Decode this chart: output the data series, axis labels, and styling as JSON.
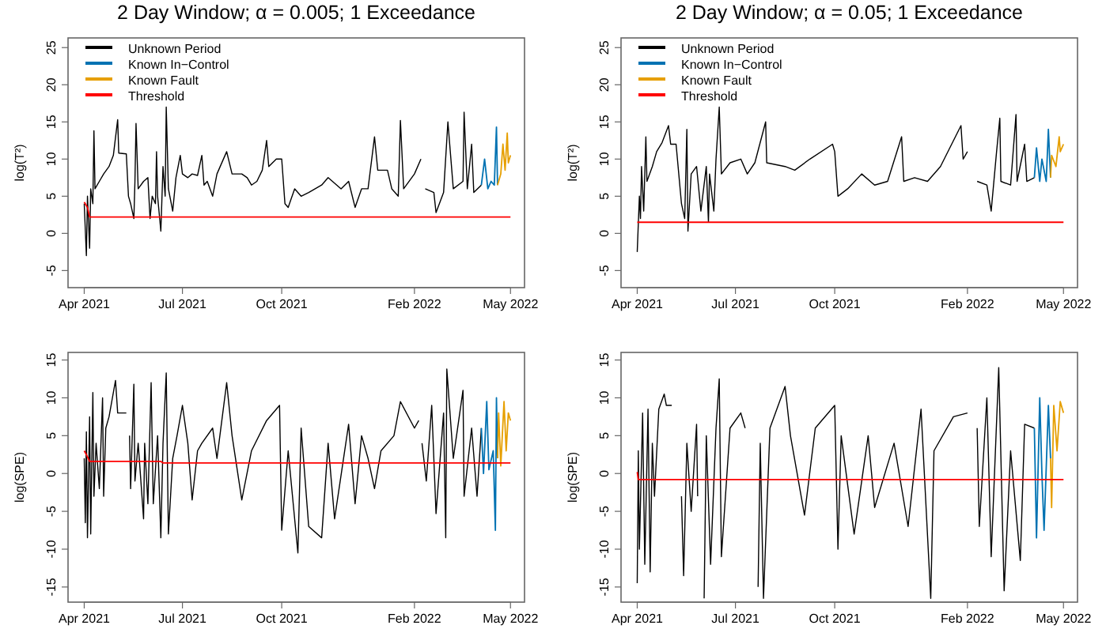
{
  "chart_data": [
    {
      "type": "line",
      "title": "2 Day Window; α = 0.005; 1 Exceedance",
      "ylabel": "log(T²)",
      "xlim": [
        "2021-03-17",
        "2022-05-14"
      ],
      "ylim": [
        -7.3,
        26.3
      ],
      "xticks": [
        {
          "value": "2021-04-01",
          "label": "Apr 2021"
        },
        {
          "value": "2021-07-01",
          "label": "Jul 2021"
        },
        {
          "value": "2021-10-01",
          "label": "Oct 2021"
        },
        {
          "value": "2022-02-01",
          "label": "Feb 2022"
        },
        {
          "value": "2022-05-01",
          "label": "May 2022"
        }
      ],
      "yticks": [
        -5,
        0,
        5,
        10,
        15,
        20,
        25
      ],
      "legend": "top left",
      "series": [
        {
          "name": "Unknown Period",
          "color": "#000000",
          "x": [
            "2021-04-01",
            "2021-04-03",
            "2021-04-04",
            "2021-04-06",
            "2021-04-07",
            "2021-04-09",
            "2021-04-10",
            "2021-04-11",
            "2021-04-15",
            "2021-04-19",
            "2021-04-24",
            "2021-04-28",
            "2021-05-02",
            "2021-05-03",
            "2021-05-10",
            "2021-05-12",
            "2021-05-14",
            "2021-05-17",
            "2021-05-18",
            "2021-05-19",
            "2021-05-21",
            "2021-05-26",
            "2021-05-30",
            "2021-06-01",
            "2021-06-03",
            "2021-06-06",
            "2021-06-07",
            "2021-06-08",
            "2021-06-11",
            "2021-06-13",
            "2021-06-15",
            "2021-06-16",
            "2021-06-18",
            "2021-06-22",
            "2021-06-25",
            "2021-06-29",
            "2021-07-01",
            "2021-07-06",
            "2021-07-10",
            "2021-07-15",
            "2021-07-19",
            "2021-07-21",
            "2021-07-24",
            "2021-07-29",
            "2021-08-02",
            "2021-08-11",
            "2021-08-16",
            "2021-08-25",
            "2021-08-30",
            "2021-09-03",
            "2021-09-08",
            "2021-09-13",
            "2021-09-17",
            "2021-09-19",
            "2021-09-26",
            "2021-10-01",
            "2021-10-04",
            "2021-10-07",
            "2021-10-13",
            "2021-10-19",
            "2021-10-26",
            "2021-11-07",
            "2021-11-13",
            "2021-11-25",
            "2021-12-02",
            "2021-12-08",
            "2021-12-14",
            "2021-12-20",
            "2021-12-26",
            "2021-12-29",
            "2022-01-07",
            "2022-01-11",
            "2022-01-17",
            "2022-01-19",
            "2022-01-22",
            "2022-02-01",
            "2022-02-07",
            "2022-02-08",
            "2022-02-11",
            "2022-02-19",
            "2022-02-21",
            "2022-02-28",
            "2022-03-04",
            "2022-03-09",
            "2022-03-18",
            "2022-03-19",
            "2022-03-22",
            "2022-03-26",
            "2022-03-28",
            "2022-04-04"
          ],
          "values": [
            4,
            -3,
            5,
            -2,
            6,
            4,
            13.8,
            6,
            7,
            8,
            9,
            10.5,
            15.3,
            10.8,
            10.7,
            5,
            4,
            2,
            7,
            14.8,
            6,
            7,
            7.5,
            2,
            5,
            4,
            11,
            5,
            0.3,
            9,
            5,
            17,
            6,
            3,
            7.5,
            10.5,
            8,
            7.5,
            8,
            7.8,
            10.5,
            6.5,
            7,
            5,
            8,
            11,
            8,
            8,
            7.5,
            6.5,
            7,
            8.5,
            12.5,
            9,
            10,
            10,
            4,
            3.5,
            6,
            5,
            5.5,
            6.5,
            7.5,
            6,
            7,
            3.5,
            6,
            6,
            13,
            8.5,
            8.5,
            6,
            5,
            15.2,
            6,
            8,
            10,
            null,
            6,
            5.5,
            2.8,
            5.5,
            15,
            6,
            7,
            16.3,
            6,
            12,
            5.5,
            6.5
          ]
        },
        {
          "name": "Known In−Control",
          "color": "#0072b2",
          "x": [
            "2022-04-04",
            "2022-04-07",
            "2022-04-10",
            "2022-04-13",
            "2022-04-16",
            "2022-04-18",
            "2022-04-19"
          ],
          "values": [
            6.5,
            10,
            6,
            7,
            6.5,
            14.3,
            6.5
          ]
        },
        {
          "name": "Known Fault",
          "color": "#e69f00",
          "x": [
            "2022-04-19",
            "2022-04-22",
            "2022-04-24",
            "2022-04-26",
            "2022-04-28",
            "2022-04-29",
            "2022-05-01"
          ],
          "values": [
            6.5,
            8,
            12,
            8.5,
            13.5,
            9.5,
            10.5
          ]
        },
        {
          "name": "Threshold",
          "color": "#ff0000",
          "x": [
            "2021-04-01",
            "2021-04-04",
            "2021-04-06",
            "2022-05-01"
          ],
          "values": [
            4.2,
            3.5,
            2.2,
            2.2
          ]
        }
      ]
    },
    {
      "type": "line",
      "title": "2 Day Window; α = 0.05; 1 Exceedance",
      "ylabel": "log(T²)",
      "xlim": [
        "2021-03-17",
        "2022-05-14"
      ],
      "ylim": [
        -7.3,
        26.3
      ],
      "xticks": [
        {
          "value": "2021-04-01",
          "label": "Apr 2021"
        },
        {
          "value": "2021-07-01",
          "label": "Jul 2021"
        },
        {
          "value": "2021-10-01",
          "label": "Oct 2021"
        },
        {
          "value": "2022-02-01",
          "label": "Feb 2022"
        },
        {
          "value": "2022-05-01",
          "label": "May 2022"
        }
      ],
      "yticks": [
        -5,
        0,
        5,
        10,
        15,
        20,
        25
      ],
      "legend": "top left",
      "series": [
        {
          "name": "Unknown Period",
          "color": "#000000",
          "x": [
            "2021-04-01",
            "2021-04-03",
            "2021-04-04",
            "2021-04-05",
            "2021-04-07",
            "2021-04-09",
            "2021-04-10",
            "2021-04-15",
            "2021-04-19",
            "2021-04-24",
            "2021-04-30",
            "2021-05-02",
            "2021-05-07",
            "2021-05-12",
            "2021-05-15",
            "2021-05-17",
            "2021-05-18",
            "2021-05-21",
            "2021-05-26",
            "2021-05-30",
            "2021-06-04",
            "2021-06-06",
            "2021-06-07",
            "2021-06-11",
            "2021-06-13",
            "2021-06-16",
            "2021-06-18",
            "2021-06-26",
            "2021-07-06",
            "2021-07-12",
            "2021-07-19",
            "2021-07-29",
            "2021-07-30",
            "2021-08-16",
            "2021-08-25",
            "2021-09-08",
            "2021-09-29",
            "2021-10-01",
            "2021-10-04",
            "2021-10-13",
            "2021-10-26",
            "2021-11-07",
            "2021-11-19",
            "2021-12-02",
            "2021-12-04",
            "2021-12-14",
            "2021-12-26",
            "2022-01-07",
            "2022-01-26",
            "2022-01-28",
            "2022-02-01",
            "2022-02-06",
            "2022-02-10",
            "2022-02-19",
            "2022-02-23",
            "2022-02-28",
            "2022-03-03",
            "2022-03-04",
            "2022-03-13",
            "2022-03-18",
            "2022-03-19",
            "2022-03-26",
            "2022-03-28",
            "2022-04-04"
          ],
          "values": [
            -2.5,
            5,
            2,
            9,
            3,
            13,
            7,
            9,
            11,
            12.2,
            14.5,
            12,
            12,
            4,
            2,
            14,
            0.3,
            8,
            9,
            3,
            9,
            1.5,
            8,
            3,
            10,
            17,
            8,
            9.5,
            10,
            8,
            9.5,
            15,
            9.5,
            9,
            8.5,
            10,
            12,
            11,
            5,
            6,
            8,
            6.5,
            7,
            13,
            7,
            7.5,
            7,
            9,
            14.5,
            10,
            11,
            null,
            7,
            6.5,
            3,
            11,
            15.5,
            7,
            6.5,
            16,
            7,
            12,
            7,
            7.5
          ]
        },
        {
          "name": "Known In−Control",
          "color": "#0072b2",
          "x": [
            "2022-04-04",
            "2022-04-06",
            "2022-04-09",
            "2022-04-11",
            "2022-04-15",
            "2022-04-17",
            "2022-04-19"
          ],
          "values": [
            7.5,
            11.5,
            7,
            10,
            7,
            14,
            7.5
          ]
        },
        {
          "name": "Known Fault",
          "color": "#e69f00",
          "x": [
            "2022-04-19",
            "2022-04-20",
            "2022-04-24",
            "2022-04-27",
            "2022-04-28",
            "2022-05-01"
          ],
          "values": [
            7.5,
            10.5,
            9,
            13,
            11,
            12
          ]
        },
        {
          "name": "Threshold",
          "color": "#ff0000",
          "x": [
            "2021-04-01",
            "2022-05-01"
          ],
          "values": [
            1.5,
            1.5
          ]
        }
      ]
    },
    {
      "type": "line",
      "ylabel": "log(SPE)",
      "xlim": [
        "2021-03-17",
        "2022-05-14"
      ],
      "ylim": [
        -17,
        16
      ],
      "xticks": [
        {
          "value": "2021-04-01",
          "label": "Apr 2021"
        },
        {
          "value": "2021-07-01",
          "label": "Jul 2021"
        },
        {
          "value": "2021-10-01",
          "label": "Oct 2021"
        },
        {
          "value": "2022-02-01",
          "label": "Feb 2022"
        },
        {
          "value": "2022-05-01",
          "label": "May 2022"
        }
      ],
      "yticks": [
        -15,
        -10,
        -5,
        0,
        5,
        10,
        15
      ],
      "series": [
        {
          "color": "#000000",
          "x": [
            "2021-04-01",
            "2021-04-02",
            "2021-04-03",
            "2021-04-04",
            "2021-04-06",
            "2021-04-07",
            "2021-04-09",
            "2021-04-10",
            "2021-04-12",
            "2021-04-15",
            "2021-04-18",
            "2021-04-19",
            "2021-04-21",
            "2021-04-24",
            "2021-04-30",
            "2021-05-02",
            "2021-05-10",
            "2021-05-12",
            "2021-05-13",
            "2021-05-14",
            "2021-05-17",
            "2021-05-18",
            "2021-05-21",
            "2021-05-26",
            "2021-05-27",
            "2021-05-30",
            "2021-06-02",
            "2021-06-04",
            "2021-06-08",
            "2021-06-11",
            "2021-06-13",
            "2021-06-16",
            "2021-06-18",
            "2021-06-22",
            "2021-06-26",
            "2021-07-01",
            "2021-07-06",
            "2021-07-10",
            "2021-07-15",
            "2021-07-19",
            "2021-07-29",
            "2021-08-02",
            "2021-08-11",
            "2021-08-16",
            "2021-08-25",
            "2021-09-03",
            "2021-09-17",
            "2021-09-29",
            "2021-10-01",
            "2021-10-07",
            "2021-10-16",
            "2021-10-19",
            "2021-10-26",
            "2021-11-07",
            "2021-11-13",
            "2021-11-19",
            "2021-12-02",
            "2021-12-08",
            "2021-12-14",
            "2021-12-20",
            "2021-12-26",
            "2022-01-01",
            "2022-01-13",
            "2022-01-19",
            "2022-02-01",
            "2022-02-05",
            "2022-02-07",
            "2022-02-08",
            "2022-02-12",
            "2022-02-17",
            "2022-02-21",
            "2022-02-28",
            "2022-03-02",
            "2022-03-03",
            "2022-03-09",
            "2022-03-18",
            "2022-03-19",
            "2022-03-26",
            "2022-03-31",
            "2022-04-04"
          ],
          "values": [
            2,
            -6.5,
            5.5,
            -8.5,
            7.5,
            -8,
            10.7,
            -3,
            4,
            -2,
            10,
            -3,
            6,
            7.5,
            12.3,
            8,
            8,
            null,
            5,
            -2,
            11.8,
            -1,
            4,
            -6,
            4,
            -4,
            12,
            -4,
            5,
            -8.5,
            4,
            13.3,
            -8,
            2,
            5,
            9,
            4,
            -3.5,
            3,
            4,
            6,
            2,
            12,
            5,
            -3.5,
            3,
            7,
            9,
            -7.5,
            3,
            -10.5,
            6,
            -7,
            -8.5,
            4,
            -6,
            6.5,
            -4,
            5,
            2,
            -2,
            3,
            5,
            9.5,
            6,
            7,
            null,
            4,
            -1,
            9,
            -5.3,
            8,
            -8.5,
            13.8,
            2,
            11,
            -3,
            6,
            -3,
            6
          ]
        },
        {
          "color": "#0072b2",
          "x": [
            "2022-04-04",
            "2022-04-06",
            "2022-04-09",
            "2022-04-11",
            "2022-04-15",
            "2022-04-17",
            "2022-04-18",
            "2022-04-19"
          ],
          "values": [
            6,
            0,
            9.5,
            0.5,
            3,
            -7.5,
            10,
            2
          ]
        },
        {
          "color": "#e69f00",
          "x": [
            "2022-04-19",
            "2022-04-20",
            "2022-04-22",
            "2022-04-25",
            "2022-04-27",
            "2022-04-29",
            "2022-05-01"
          ],
          "values": [
            2,
            8,
            1,
            9.5,
            3,
            8,
            7
          ]
        },
        {
          "color": "#ff0000",
          "x": [
            "2021-04-01",
            "2021-04-03",
            "2021-04-06",
            "2021-06-11",
            "2021-06-13",
            "2022-05-01"
          ],
          "values": [
            3,
            2.5,
            1.6,
            1.6,
            1.4,
            1.4
          ]
        }
      ]
    },
    {
      "type": "line",
      "ylabel": "log(SPE)",
      "xlim": [
        "2021-03-17",
        "2022-05-14"
      ],
      "ylim": [
        -17,
        16
      ],
      "xticks": [
        {
          "value": "2021-04-01",
          "label": "Apr 2021"
        },
        {
          "value": "2021-07-01",
          "label": "Jul 2021"
        },
        {
          "value": "2021-10-01",
          "label": "Oct 2021"
        },
        {
          "value": "2022-02-01",
          "label": "Feb 2022"
        },
        {
          "value": "2022-05-01",
          "label": "May 2022"
        }
      ],
      "yticks": [
        -15,
        -10,
        -5,
        0,
        5,
        10,
        15
      ],
      "series": [
        {
          "color": "#000000",
          "x": [
            "2021-04-01",
            "2021-04-02",
            "2021-04-03",
            "2021-04-06",
            "2021-04-08",
            "2021-04-11",
            "2021-04-13",
            "2021-04-15",
            "2021-04-17",
            "2021-04-21",
            "2021-04-26",
            "2021-04-28",
            "2021-05-03",
            "2021-05-07",
            "2021-05-12",
            "2021-05-14",
            "2021-05-17",
            "2021-05-21",
            "2021-05-26",
            "2021-05-27",
            "2021-05-30",
            "2021-06-02",
            "2021-06-04",
            "2021-06-08",
            "2021-06-13",
            "2021-06-16",
            "2021-06-18",
            "2021-06-26",
            "2021-07-06",
            "2021-07-10",
            "2021-07-15",
            "2021-07-22",
            "2021-07-24",
            "2021-07-27",
            "2021-08-02",
            "2021-08-16",
            "2021-08-21",
            "2021-09-03",
            "2021-09-13",
            "2021-10-01",
            "2021-10-04",
            "2021-10-07",
            "2021-10-19",
            "2021-11-01",
            "2021-11-07",
            "2021-11-25",
            "2021-12-08",
            "2021-12-20",
            "2021-12-29",
            "2022-01-01",
            "2022-01-19",
            "2022-02-01",
            "2022-02-06",
            "2022-02-10",
            "2022-02-12",
            "2022-02-19",
            "2022-02-23",
            "2022-03-02",
            "2022-03-07",
            "2022-03-13",
            "2022-03-22",
            "2022-03-26",
            "2022-04-04"
          ],
          "values": [
            -14.5,
            3,
            -10,
            8,
            -12,
            8.5,
            -13,
            4,
            -3,
            8.5,
            10.5,
            9,
            9,
            null,
            -3,
            -13.5,
            4,
            -5,
            6.5,
            -3,
            null,
            -16.5,
            5,
            -12,
            6,
            12.5,
            -11,
            6,
            8,
            6,
            null,
            -15,
            4,
            -16.5,
            6,
            11.5,
            5,
            -5.5,
            6,
            9,
            -10,
            5,
            -8,
            5,
            -4.5,
            4,
            -7,
            8.5,
            -16.5,
            3,
            7.5,
            8,
            null,
            6,
            -7,
            10,
            -11,
            14,
            -15.5,
            3,
            -11.5,
            6.5,
            6
          ]
        },
        {
          "color": "#0072b2",
          "x": [
            "2022-04-04",
            "2022-04-06",
            "2022-04-09",
            "2022-04-11",
            "2022-04-13",
            "2022-04-17",
            "2022-04-19"
          ],
          "values": [
            6,
            -8.5,
            10,
            0,
            -7.5,
            9,
            2
          ]
        },
        {
          "color": "#e69f00",
          "x": [
            "2022-04-19",
            "2022-04-20",
            "2022-04-22",
            "2022-04-25",
            "2022-04-28",
            "2022-05-01"
          ],
          "values": [
            2,
            -4.5,
            9,
            3,
            9.5,
            8
          ]
        },
        {
          "color": "#ff0000",
          "x": [
            "2021-04-01",
            "2021-04-02",
            "2022-05-01"
          ],
          "values": [
            0.2,
            -0.8,
            -0.8
          ]
        }
      ]
    }
  ]
}
